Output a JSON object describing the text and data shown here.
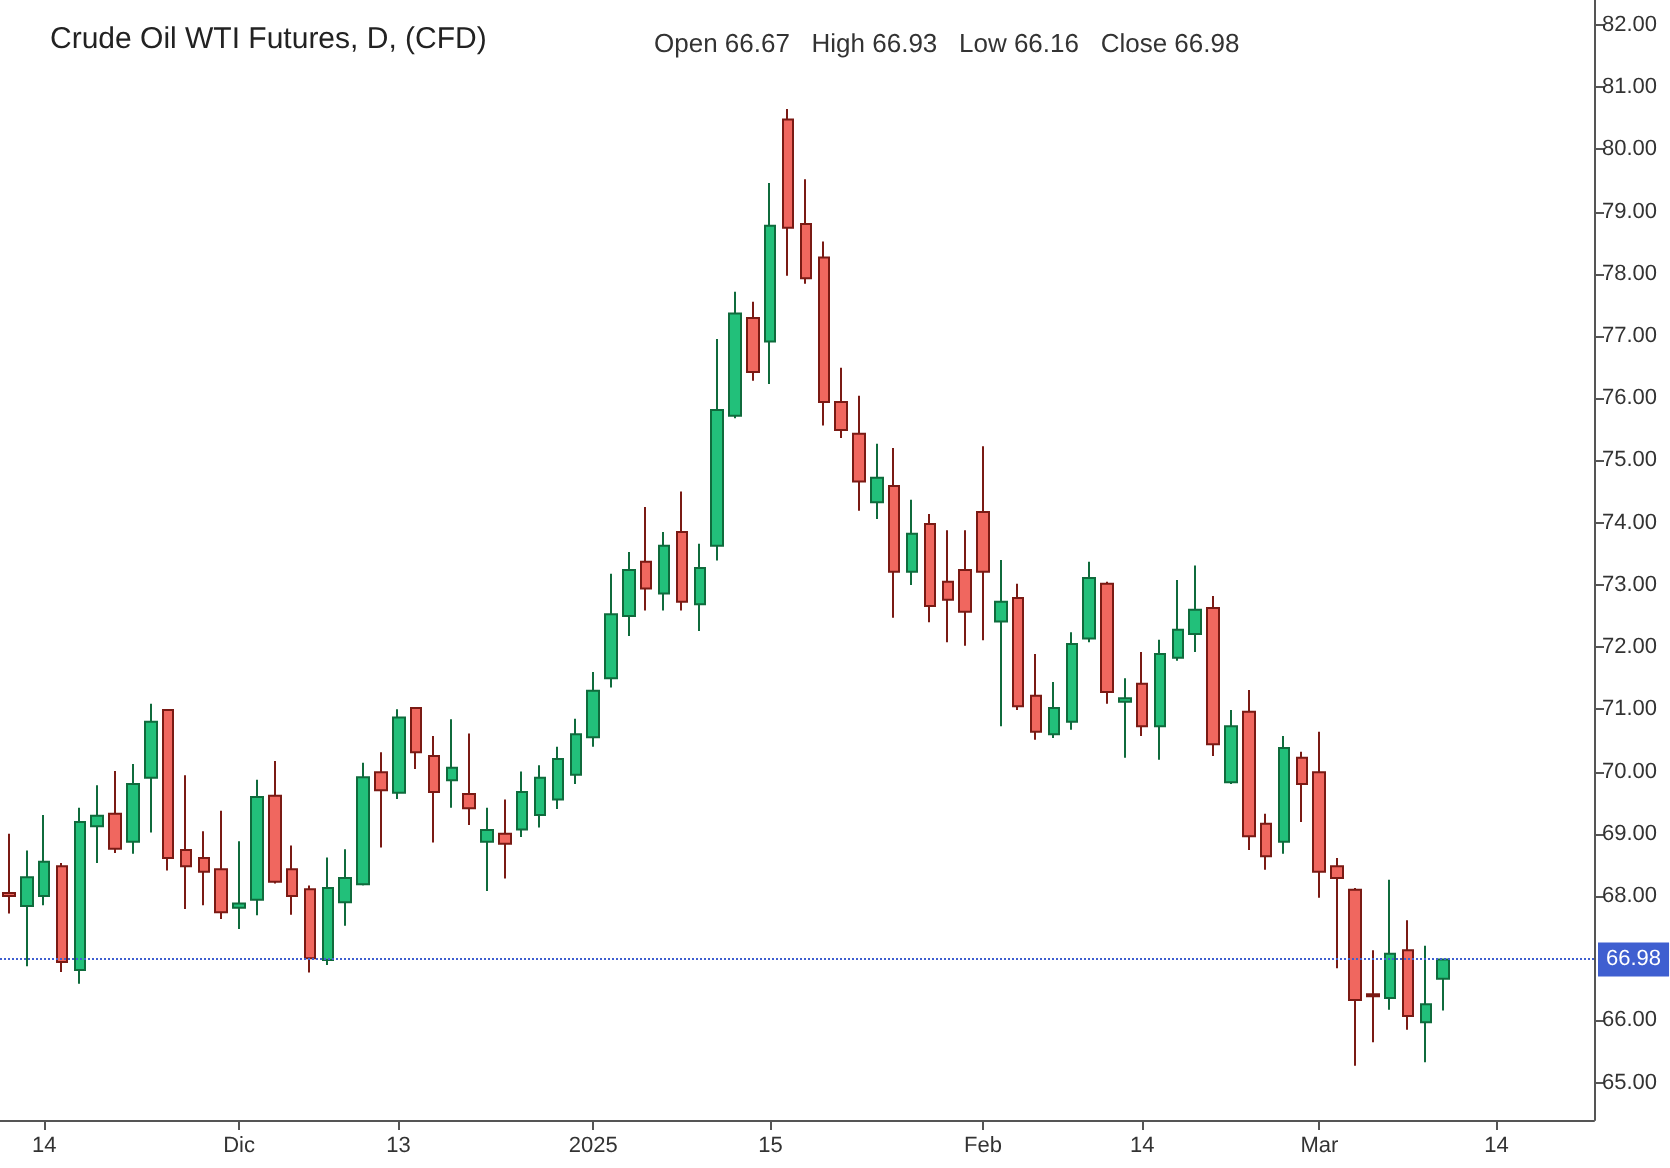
{
  "chart_data": {
    "type": "candlestick",
    "title": "Crude Oil WTI Futures, D, (CFD)",
    "subtitle": "Open 66.67   High 66.93   Low 66.16   Close 66.98",
    "categories": [
      null,
      null,
      "14",
      null,
      null,
      null,
      null,
      null,
      null,
      null,
      null,
      null,
      null,
      "Dic",
      null,
      null,
      null,
      null,
      null,
      null,
      null,
      null,
      "13",
      null,
      null,
      null,
      null,
      null,
      null,
      null,
      null,
      null,
      null,
      "2025",
      null,
      null,
      null,
      null,
      null,
      null,
      null,
      null,
      null,
      "15",
      null,
      null,
      null,
      null,
      null,
      null,
      null,
      null,
      null,
      null,
      null,
      "Feb",
      null,
      null,
      null,
      null,
      null,
      null,
      null,
      null,
      "14",
      null,
      null,
      null,
      null,
      null,
      null,
      null,
      null,
      null,
      "Mar",
      null,
      null,
      null,
      null,
      null,
      null,
      null,
      null,
      null,
      "14",
      null,
      null,
      null,
      null,
      null
    ],
    "ohlc": [
      [
        68.05,
        69.0,
        67.72,
        68.0
      ],
      [
        67.84,
        68.73,
        66.87,
        68.3
      ],
      [
        68.0,
        69.3,
        67.85,
        68.55
      ],
      [
        68.48,
        68.53,
        66.78,
        66.94
      ],
      [
        66.81,
        69.42,
        66.59,
        69.19
      ],
      [
        69.12,
        69.78,
        68.53,
        69.29
      ],
      [
        69.32,
        70.01,
        68.69,
        68.76
      ],
      [
        68.87,
        70.12,
        68.68,
        69.8
      ],
      [
        69.9,
        71.09,
        69.02,
        70.8
      ],
      [
        70.99,
        71.0,
        68.41,
        68.61
      ],
      [
        68.74,
        69.94,
        67.79,
        68.48
      ],
      [
        68.61,
        69.04,
        67.85,
        68.39
      ],
      [
        68.43,
        69.37,
        67.63,
        67.74
      ],
      [
        67.81,
        68.88,
        67.47,
        67.88
      ],
      [
        67.94,
        69.87,
        67.69,
        69.59
      ],
      [
        69.61,
        70.17,
        68.2,
        68.23
      ],
      [
        68.43,
        68.81,
        67.7,
        68.0
      ],
      [
        68.11,
        68.17,
        66.77,
        67.0
      ],
      [
        66.97,
        68.62,
        66.89,
        68.13
      ],
      [
        67.9,
        68.75,
        67.52,
        68.29
      ],
      [
        68.19,
        70.14,
        68.17,
        69.91
      ],
      [
        69.99,
        70.31,
        68.78,
        69.7
      ],
      [
        69.66,
        71.0,
        69.56,
        70.87
      ],
      [
        71.02,
        71.02,
        70.04,
        70.31
      ],
      [
        70.25,
        70.57,
        68.86,
        69.67
      ],
      [
        69.86,
        70.84,
        69.42,
        70.06
      ],
      [
        69.64,
        70.61,
        69.14,
        69.41
      ],
      [
        68.87,
        69.42,
        68.08,
        69.06
      ],
      [
        69.0,
        69.55,
        68.28,
        68.84
      ],
      [
        69.07,
        70.0,
        68.95,
        69.67
      ],
      [
        69.3,
        70.1,
        69.1,
        69.9
      ],
      [
        69.55,
        70.4,
        69.4,
        70.2
      ],
      [
        69.95,
        70.85,
        69.8,
        70.6
      ],
      [
        70.55,
        71.6,
        70.4,
        71.3
      ],
      [
        71.5,
        73.18,
        71.35,
        72.53
      ],
      [
        72.5,
        73.53,
        72.18,
        73.24
      ],
      [
        73.37,
        74.25,
        72.59,
        72.94
      ],
      [
        72.86,
        73.85,
        72.59,
        73.63
      ],
      [
        73.85,
        74.5,
        72.59,
        72.73
      ],
      [
        72.69,
        73.66,
        72.26,
        73.27
      ],
      [
        73.63,
        76.95,
        73.39,
        75.81
      ],
      [
        75.72,
        77.71,
        75.68,
        77.36
      ],
      [
        77.29,
        77.55,
        76.28,
        76.42
      ],
      [
        76.91,
        79.46,
        76.23,
        78.77
      ],
      [
        80.48,
        80.65,
        77.97,
        78.74
      ],
      [
        78.8,
        79.52,
        77.84,
        77.93
      ],
      [
        78.26,
        78.52,
        75.56,
        75.94
      ],
      [
        75.94,
        76.49,
        75.36,
        75.49
      ],
      [
        75.43,
        76.04,
        74.19,
        74.66
      ],
      [
        74.33,
        75.27,
        74.06,
        74.72
      ],
      [
        74.59,
        75.2,
        72.47,
        73.21
      ],
      [
        73.21,
        74.37,
        73.0,
        73.82
      ],
      [
        73.98,
        74.14,
        72.4,
        72.66
      ],
      [
        73.05,
        73.88,
        72.08,
        72.76
      ],
      [
        73.24,
        73.88,
        72.02,
        72.57
      ],
      [
        74.17,
        75.23,
        72.11,
        73.21
      ],
      [
        72.41,
        73.4,
        70.73,
        72.73
      ],
      [
        72.79,
        73.02,
        70.99,
        71.05
      ],
      [
        71.22,
        71.89,
        70.51,
        70.64
      ],
      [
        70.6,
        71.44,
        70.54,
        71.02
      ],
      [
        70.8,
        72.24,
        70.67,
        72.05
      ],
      [
        72.14,
        73.37,
        72.08,
        73.11
      ],
      [
        73.02,
        73.05,
        71.09,
        71.28
      ],
      [
        71.12,
        71.5,
        70.22,
        71.18
      ],
      [
        71.41,
        71.92,
        70.57,
        70.73
      ],
      [
        70.73,
        72.12,
        70.19,
        71.89
      ],
      [
        71.83,
        73.08,
        71.78,
        72.28
      ],
      [
        72.21,
        73.31,
        71.92,
        72.6
      ],
      [
        72.63,
        72.82,
        70.25,
        70.44
      ],
      [
        69.83,
        70.99,
        69.8,
        70.73
      ],
      [
        70.96,
        71.31,
        68.74,
        68.96
      ],
      [
        69.16,
        69.32,
        68.42,
        68.64
      ],
      [
        68.87,
        70.57,
        68.68,
        70.38
      ],
      [
        70.22,
        70.32,
        69.19,
        69.8
      ],
      [
        69.99,
        70.64,
        67.97,
        68.39
      ],
      [
        68.48,
        68.61,
        66.84,
        68.29
      ],
      [
        68.1,
        68.13,
        65.27,
        66.33
      ],
      [
        66.42,
        67.13,
        65.65,
        66.39
      ],
      [
        66.36,
        68.26,
        66.17,
        67.07
      ],
      [
        67.13,
        67.61,
        65.85,
        66.07
      ],
      [
        65.97,
        67.2,
        65.33,
        66.26
      ],
      [
        66.67,
        66.98,
        66.16,
        66.98
      ],
      null,
      null,
      null,
      null,
      null,
      null,
      null,
      null
    ],
    "colors": [
      "#f0675f",
      "#22c07a",
      "#22c07a",
      "#f0675f",
      "#22c07a",
      "#22c07a",
      "#f0675f",
      "#22c07a",
      "#22c07a",
      "#f0675f",
      "#f0675f",
      "#f0675f",
      "#f0675f",
      "#22c07a",
      "#22c07a",
      "#f0675f",
      "#f0675f",
      "#f0675f",
      "#22c07a",
      "#22c07a",
      "#22c07a",
      "#f0675f",
      "#22c07a",
      "#f0675f",
      "#f0675f",
      "#22c07a",
      "#f0675f",
      "#22c07a",
      "#f0675f",
      "#22c07a",
      "#22c07a",
      "#22c07a",
      "#22c07a",
      "#22c07a",
      "#22c07a",
      "#22c07a",
      "#f0675f",
      "#22c07a",
      "#f0675f",
      "#22c07a",
      "#22c07a",
      "#22c07a",
      "#f0675f",
      "#22c07a",
      "#f0675f",
      "#f0675f",
      "#f0675f",
      "#f0675f",
      "#f0675f",
      "#22c07a",
      "#f0675f",
      "#22c07a",
      "#f0675f",
      "#f0675f",
      "#f0675f",
      "#f0675f",
      "#22c07a",
      "#f0675f",
      "#f0675f",
      "#22c07a",
      "#22c07a",
      "#22c07a",
      "#f0675f",
      "#22c07a",
      "#f0675f",
      "#22c07a",
      "#22c07a",
      "#22c07a",
      "#f0675f",
      "#22c07a",
      "#f0675f",
      "#f0675f",
      "#22c07a",
      "#f0675f",
      "#f0675f",
      "#f0675f",
      "#f0675f",
      "#f0675f",
      "#22c07a",
      "#f0675f",
      "#22c07a",
      "#22c07a",
      null,
      null,
      null,
      null,
      null,
      null,
      null,
      null
    ],
    "ylim": [
      64.4,
      82.4
    ],
    "yticks": [
      {
        "value": 65,
        "label": "65.00"
      },
      {
        "value": 66,
        "label": "66.00"
      },
      {
        "value": 68,
        "label": "68.00"
      },
      {
        "value": 69,
        "label": "69.00"
      },
      {
        "value": 70,
        "label": "70.00"
      },
      {
        "value": 71,
        "label": "71.00"
      },
      {
        "value": 72,
        "label": "72.00"
      },
      {
        "value": 73,
        "label": "73.00"
      },
      {
        "value": 74,
        "label": "74.00"
      },
      {
        "value": 75,
        "label": "75.00"
      },
      {
        "value": 76,
        "label": "76.00"
      },
      {
        "value": 77,
        "label": "77.00"
      },
      {
        "value": 78,
        "label": "78.00"
      },
      {
        "value": 79,
        "label": "79.00"
      },
      {
        "value": 80,
        "label": "80.00"
      },
      {
        "value": 81,
        "label": "81.00"
      },
      {
        "value": 82,
        "label": "82.00"
      }
    ],
    "ref_lines": [
      {
        "axis": "y",
        "value": 66.98,
        "label": "66.98",
        "color": "#3f5fd0",
        "line_style": "dotted"
      }
    ],
    "grid": false
  }
}
